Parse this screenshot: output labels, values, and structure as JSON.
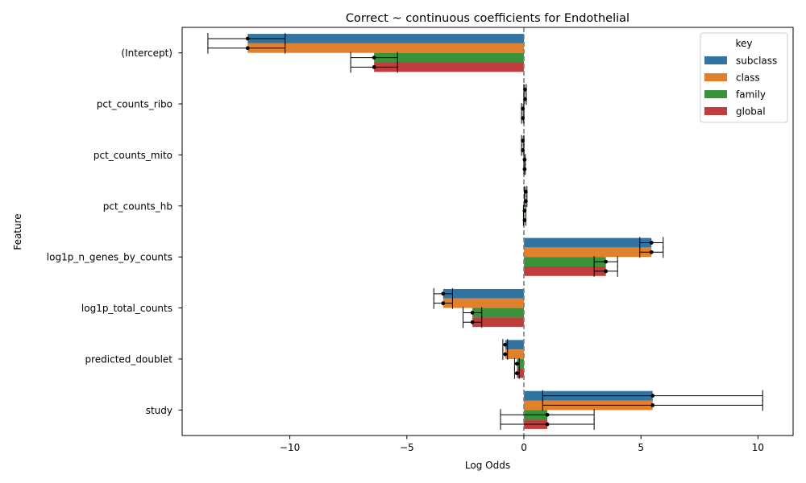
{
  "chart_data": {
    "type": "bar",
    "orientation": "horizontal",
    "title": "Correct ~ continuous coefficients for Endothelial",
    "xlabel": "Log Odds",
    "ylabel": "Feature",
    "xlim": [
      -14.6,
      11.5
    ],
    "xticks": [
      -10,
      -5,
      0,
      5,
      10
    ],
    "xtick_labels": [
      "−10",
      "−5",
      "0",
      "5",
      "10"
    ],
    "zero_line": "dashed",
    "categories": [
      "(Intercept)",
      "pct_counts_ribo",
      "pct_counts_mito",
      "pct_counts_hb",
      "log1p_n_genes_by_counts",
      "log1p_total_counts",
      "predicted_doublet",
      "study"
    ],
    "legend": {
      "title": "key",
      "placement": "top-right"
    },
    "series": [
      {
        "name": "subclass",
        "color": "#3274a1",
        "values": [
          -11.8,
          0.05,
          -0.05,
          0.08,
          5.45,
          -3.45,
          -0.8,
          5.5
        ],
        "ci": [
          [
            -13.5,
            -10.2
          ],
          [
            0.0,
            0.1
          ],
          [
            -0.1,
            0.0
          ],
          [
            0.03,
            0.13
          ],
          [
            4.95,
            5.95
          ],
          [
            -3.85,
            -3.05
          ],
          [
            -0.9,
            -0.7
          ],
          [
            0.8,
            10.2
          ]
        ]
      },
      {
        "name": "class",
        "color": "#e1812c",
        "values": [
          -11.8,
          0.05,
          -0.05,
          0.08,
          5.45,
          -3.45,
          -0.8,
          5.5
        ],
        "ci": [
          [
            -13.5,
            -10.2
          ],
          [
            0.0,
            0.1
          ],
          [
            -0.1,
            0.0
          ],
          [
            0.03,
            0.13
          ],
          [
            4.95,
            5.95
          ],
          [
            -3.85,
            -3.05
          ],
          [
            -0.9,
            -0.7
          ],
          [
            0.8,
            10.2
          ]
        ]
      },
      {
        "name": "family",
        "color": "#3a923a",
        "values": [
          -6.4,
          -0.05,
          0.03,
          0.03,
          3.5,
          -2.2,
          -0.3,
          1.0
        ],
        "ci": [
          [
            -7.4,
            -5.4
          ],
          [
            -0.1,
            0.0
          ],
          [
            0.0,
            0.06
          ],
          [
            -0.02,
            0.08
          ],
          [
            3.0,
            4.0
          ],
          [
            -2.6,
            -1.8
          ],
          [
            -0.4,
            -0.2
          ],
          [
            -1.0,
            3.0
          ]
        ]
      },
      {
        "name": "global",
        "color": "#c03d3e",
        "values": [
          -6.4,
          -0.05,
          0.03,
          0.03,
          3.5,
          -2.2,
          -0.3,
          1.0
        ],
        "ci": [
          [
            -7.4,
            -5.4
          ],
          [
            -0.1,
            0.0
          ],
          [
            0.0,
            0.06
          ],
          [
            -0.02,
            0.08
          ],
          [
            3.0,
            4.0
          ],
          [
            -2.6,
            -1.8
          ],
          [
            -0.4,
            -0.2
          ],
          [
            -1.0,
            3.0
          ]
        ]
      }
    ]
  }
}
